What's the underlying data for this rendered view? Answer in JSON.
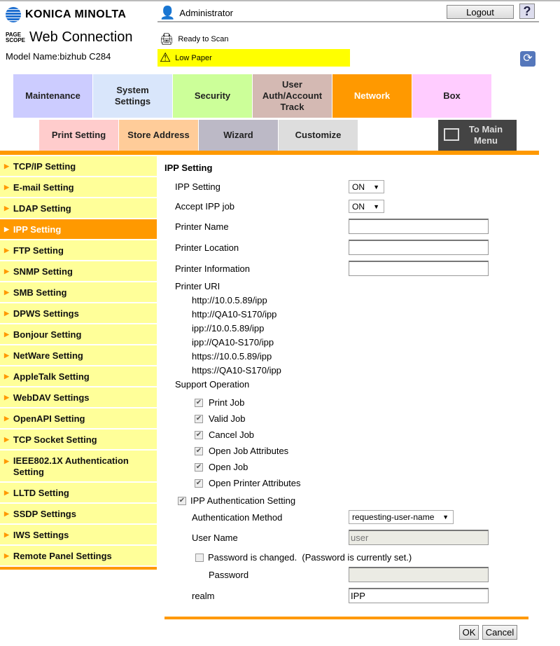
{
  "header": {
    "brand": "KONICA MINOLTA",
    "pagescope": "PAGE SCOPE",
    "product": "Web Connection",
    "model": "Model Name:bizhub C284",
    "user": "Administrator",
    "logout": "Logout",
    "help": "?",
    "status_scan": "Ready to Scan",
    "status_warning": "Low Paper",
    "warning_color": "#ffff00"
  },
  "tabs_row1": [
    {
      "label": "Maintenance",
      "color": "#ccccff"
    },
    {
      "label": "System Settings",
      "color": "#d9e6fb"
    },
    {
      "label": "Security",
      "color": "#ccff99"
    },
    {
      "label": "User Auth/Account Track",
      "color": "#d4b9b3"
    },
    {
      "label": "Network",
      "color": "#ff9900",
      "active": true
    },
    {
      "label": "Box",
      "color": "#ffccff"
    }
  ],
  "tabs_row2": [
    {
      "label": "Print Setting",
      "color": "#ffcccc"
    },
    {
      "label": "Store Address",
      "color": "#ffcc99"
    },
    {
      "label": "Wizard",
      "color": "#bcb9c6"
    },
    {
      "label": "Customize",
      "color": "#dddddd"
    }
  ],
  "to_main_menu": "To Main Menu",
  "sidebar": [
    "TCP/IP Setting",
    "E-mail Setting",
    "LDAP Setting",
    "IPP Setting",
    "FTP Setting",
    "SNMP Setting",
    "SMB Setting",
    "DPWS Settings",
    "Bonjour Setting",
    "NetWare Setting",
    "AppleTalk Setting",
    "WebDAV Settings",
    "OpenAPI Setting",
    "TCP Socket Setting",
    "IEEE802.1X Authentication Setting",
    "LLTD Setting",
    "SSDP Settings",
    "IWS Settings",
    "Remote Panel Settings"
  ],
  "sidebar_active": "IPP Setting",
  "form": {
    "title": "IPP Setting",
    "ipp_setting_label": "IPP Setting",
    "ipp_setting_value": "ON",
    "accept_label": "Accept IPP job",
    "accept_value": "ON",
    "printer_name_label": "Printer Name",
    "printer_name_value": "",
    "printer_location_label": "Printer Location",
    "printer_location_value": "",
    "printer_info_label": "Printer Information",
    "printer_info_value": "",
    "uri_label": "Printer URI",
    "uris": [
      "http://10.0.5.89/ipp",
      "http://QA10-S170/ipp",
      "ipp://10.0.5.89/ipp",
      "ipp://QA10-S170/ipp",
      "https://10.0.5.89/ipp",
      "https://QA10-S170/ipp"
    ],
    "support_label": "Support Operation",
    "operations": [
      {
        "label": "Print Job",
        "checked": true
      },
      {
        "label": "Valid Job",
        "checked": true
      },
      {
        "label": "Cancel Job",
        "checked": true
      },
      {
        "label": "Open Job Attributes",
        "checked": true
      },
      {
        "label": "Open Job",
        "checked": true
      },
      {
        "label": "Open Printer Attributes",
        "checked": true
      }
    ],
    "auth_setting_label": "IPP Authentication Setting",
    "auth_setting_checked": true,
    "auth_method_label": "Authentication Method",
    "auth_method_value": "requesting-user-name",
    "user_name_label": "User Name",
    "user_name_value": "user",
    "pw_changed_label": "Password is changed.  (Password is currently set.)",
    "pw_changed_checked": false,
    "password_label": "Password",
    "password_value": "",
    "realm_label": "realm",
    "realm_value": "IPP"
  },
  "buttons": {
    "ok": "OK",
    "cancel": "Cancel"
  }
}
